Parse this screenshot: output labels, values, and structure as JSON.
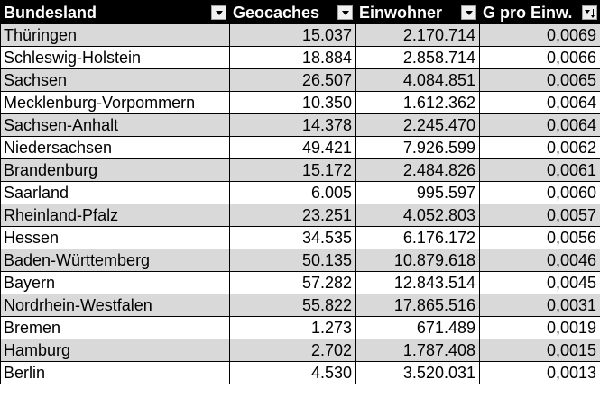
{
  "table": {
    "headers": [
      "Bundesland",
      "Geocaches",
      "Einwohner",
      "G pro Einw."
    ],
    "rows": [
      [
        "Thüringen",
        "15.037",
        "2.170.714",
        "0,0069"
      ],
      [
        "Schleswig-Holstein",
        "18.884",
        "2.858.714",
        "0,0066"
      ],
      [
        "Sachsen",
        "26.507",
        "4.084.851",
        "0,0065"
      ],
      [
        "Mecklenburg-Vorpommern",
        "10.350",
        "1.612.362",
        "0,0064"
      ],
      [
        "Sachsen-Anhalt",
        "14.378",
        "2.245.470",
        "0,0064"
      ],
      [
        "Niedersachsen",
        "49.421",
        "7.926.599",
        "0,0062"
      ],
      [
        "Brandenburg",
        "15.172",
        "2.484.826",
        "0,0061"
      ],
      [
        "Saarland",
        "6.005",
        "995.597",
        "0,0060"
      ],
      [
        "Rheinland-Pfalz",
        "23.251",
        "4.052.803",
        "0,0057"
      ],
      [
        "Hessen",
        "34.535",
        "6.176.172",
        "0,0056"
      ],
      [
        "Baden-Württemberg",
        "50.135",
        "10.879.618",
        "0,0046"
      ],
      [
        "Bayern",
        "57.282",
        "12.843.514",
        "0,0045"
      ],
      [
        "Nordrhein-Westfalen",
        "55.822",
        "17.865.516",
        "0,0031"
      ],
      [
        "Bremen",
        "1.273",
        "671.489",
        "0,0019"
      ],
      [
        "Hamburg",
        "2.702",
        "1.787.408",
        "0,0015"
      ],
      [
        "Berlin",
        "4.530",
        "3.520.031",
        "0,0013"
      ]
    ]
  },
  "filters": [
    "filter-dropdown",
    "filter-dropdown",
    "filter-dropdown",
    "sort-descending"
  ],
  "colors": {
    "header_bg": "#000000",
    "header_fg": "#ffffff",
    "band_gray": "#d9d9d9",
    "band_white": "#ffffff"
  }
}
